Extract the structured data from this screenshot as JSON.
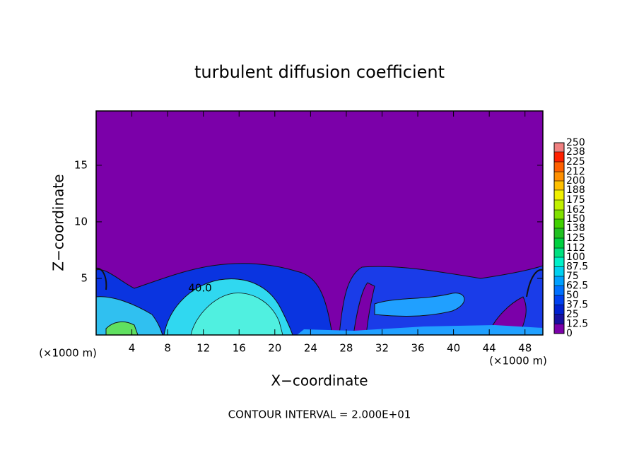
{
  "chart_data": {
    "type": "contour",
    "title": "turbulent diffusion coefficient",
    "x_label": "X−coordinate",
    "y_label": "Z−coordinate",
    "x_unit": "(×1000 m)",
    "y_unit": "(×1000 m)",
    "note": "CONTOUR INTERVAL = 2.000E+01",
    "contour_label": "40.0",
    "xlim": [
      0,
      50
    ],
    "xticks": [
      4,
      8,
      12,
      16,
      20,
      24,
      28,
      32,
      36,
      40,
      44,
      48
    ],
    "ylim": [
      0,
      19.8
    ],
    "yticks": [
      5,
      10,
      15
    ],
    "colorbar": {
      "levels": [
        0,
        12.5,
        25,
        37.5,
        50,
        62.5,
        75,
        87.5,
        100,
        112,
        125,
        138,
        150,
        162,
        175,
        188,
        200,
        212,
        225,
        238,
        250
      ],
      "colors": [
        "#7b00a9",
        "#1810a0",
        "#0020d0",
        "#0040f0",
        "#0070ff",
        "#00a0ff",
        "#00d0f0",
        "#00f0c8",
        "#00e080",
        "#00d040",
        "#20c020",
        "#40d000",
        "#80e000",
        "#c0f000",
        "#f0f000",
        "#ffc000",
        "#ff9000",
        "#ff6000",
        "#ff2000",
        "#f08080"
      ]
    }
  }
}
